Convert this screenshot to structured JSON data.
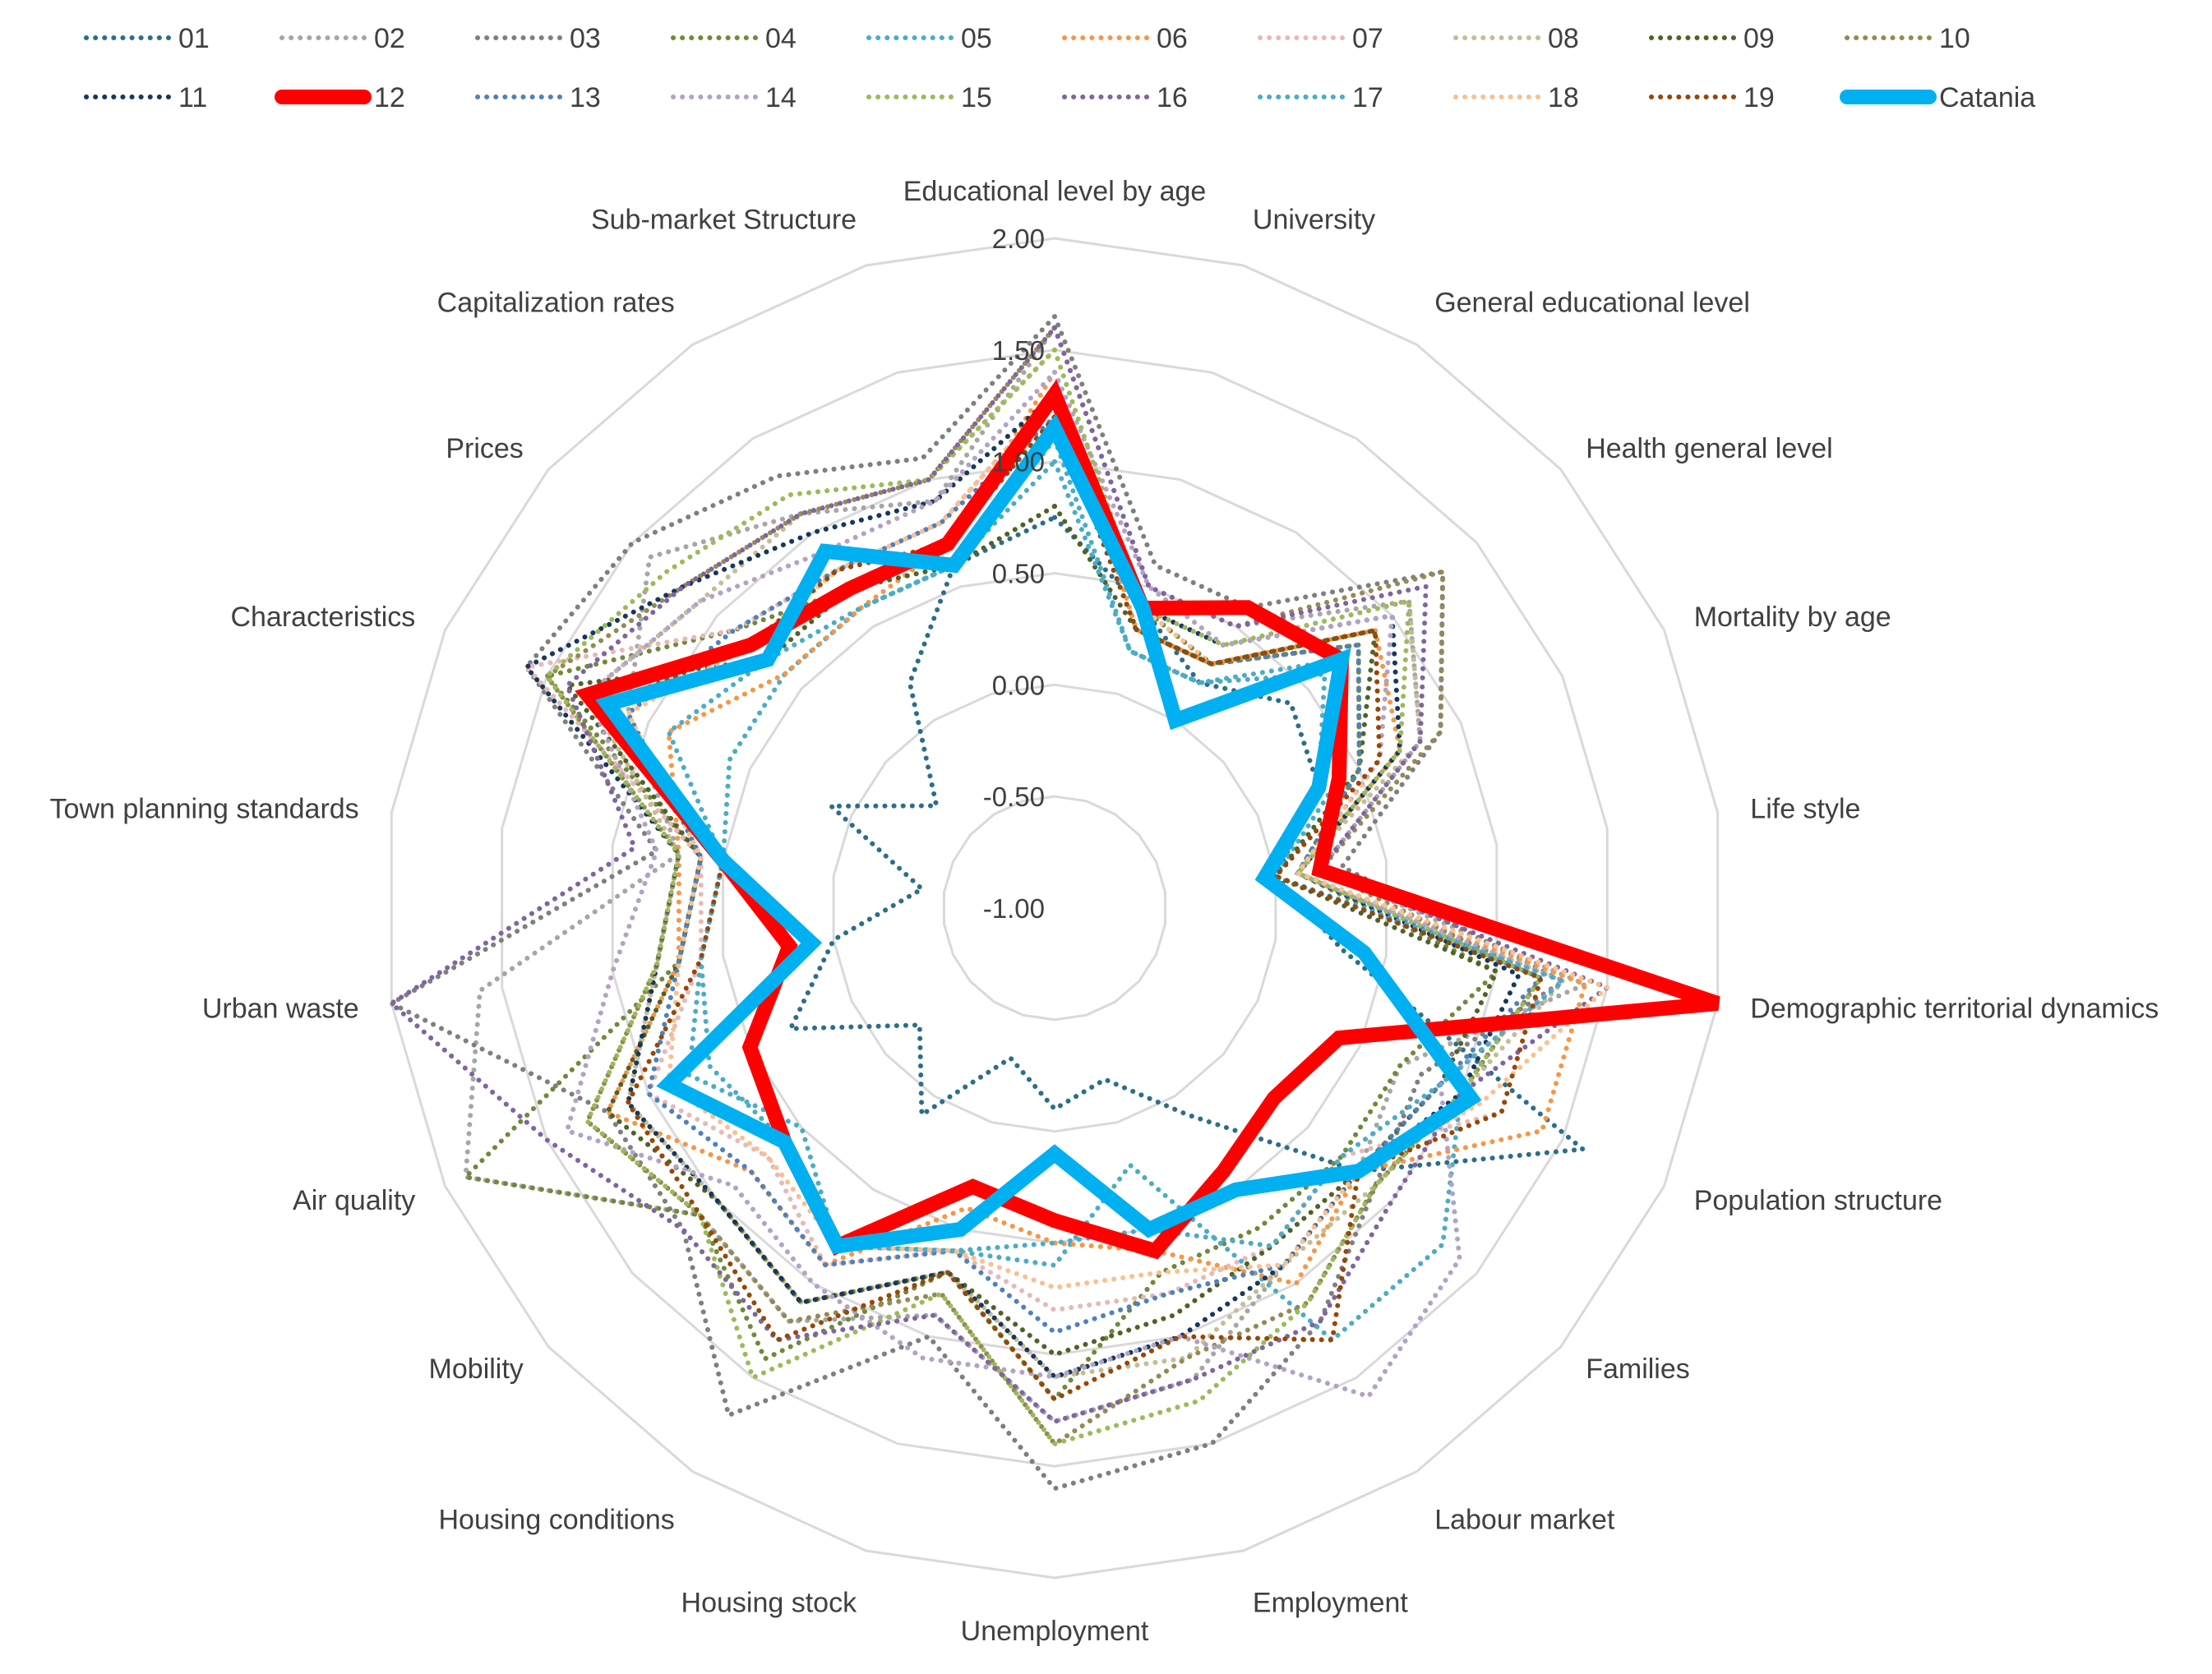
{
  "chart_data": {
    "type": "radar",
    "title": "",
    "rlim": [
      -1.0,
      2.0
    ],
    "r_ticks": [
      "-1.00",
      "-0.50",
      "0.00",
      "0.50",
      "1.00",
      "1.50",
      "2.00"
    ],
    "r_tick_values": [
      -1.0,
      -0.5,
      0.0,
      0.5,
      1.0,
      1.5,
      2.0
    ],
    "grid": true,
    "legend_position": "top",
    "categories": [
      "Educational level by age",
      "University",
      "General educational level",
      "Health general level",
      "Mortality by age",
      "Life style",
      "Demographic territorial dynamics",
      "Population structure",
      "Families",
      "Labour market",
      "Employment",
      "Unemployment",
      "Housing stock",
      "Housing conditions",
      "Mobility",
      "Air quality",
      "Urban waste",
      "Town planning standards",
      "Characteristics",
      "Prices",
      "Capitalization rates",
      "Sub-market Structure"
    ],
    "series": [
      {
        "name": "01",
        "color": "#2c6e8a",
        "style": "dotted",
        "values": [
          0.75,
          0.4,
          0.2,
          0.4,
          0.3,
          0.0,
          0.3,
          1.6,
          0.8,
          0.1,
          -0.2,
          -0.1,
          -0.3,
          0.1,
          -0.2,
          0.3,
          0.0,
          -0.4,
          0.1,
          -0.3,
          0.2,
          0.6
        ]
      },
      {
        "name": "02",
        "color": "#a6a6a6",
        "style": "dotted",
        "values": [
          1.6,
          0.5,
          0.5,
          1.1,
          0.8,
          0.2,
          1.4,
          0.7,
          0.8,
          0.9,
          1.2,
          1.3,
          0.9,
          1.2,
          1.1,
          1.9,
          1.6,
          0.7,
          1.1,
          1.4,
          1.1,
          0.9
        ]
      },
      {
        "name": "03",
        "color": "#7f7f7f",
        "style": "dotted",
        "values": [
          1.65,
          0.6,
          0.6,
          1.3,
          0.9,
          0.3,
          1.3,
          0.8,
          0.9,
          1.2,
          1.5,
          1.6,
          1.0,
          1.7,
          1.2,
          1.2,
          2.0,
          0.8,
          1.6,
          1.5,
          1.3,
          1.1
        ]
      },
      {
        "name": "04",
        "color": "#70893a",
        "style": "dotted",
        "values": [
          1.2,
          0.4,
          0.3,
          0.8,
          0.5,
          0.1,
          1.0,
          0.7,
          0.7,
          0.7,
          0.7,
          1.2,
          0.7,
          1.4,
          1.1,
          1.9,
          0.7,
          0.6,
          1.5,
          0.9,
          0.7,
          0.7
        ]
      },
      {
        "name": "05",
        "color": "#4bacc6",
        "style": "dotted",
        "values": [
          1.1,
          0.2,
          0.2,
          0.7,
          0.4,
          0.0,
          1.2,
          1.0,
          1.3,
          1.3,
          0.2,
          0.6,
          0.6,
          0.8,
          0.5,
          0.8,
          0.6,
          0.5,
          0.6,
          0.6,
          0.6,
          0.6
        ]
      },
      {
        "name": "06",
        "color": "#f79646",
        "style": "dotted",
        "values": [
          1.4,
          0.3,
          0.3,
          0.9,
          0.7,
          0.1,
          1.4,
          1.4,
          0.8,
          1.0,
          0.6,
          0.5,
          0.4,
          0.9,
          0.8,
          1.2,
          0.7,
          0.7,
          0.9,
          0.6,
          0.6,
          0.7
        ]
      },
      {
        "name": "07",
        "color": "#e6b9b8",
        "style": "dotted",
        "values": [
          1.3,
          0.4,
          0.3,
          0.9,
          0.6,
          0.0,
          1.2,
          1.2,
          0.7,
          0.8,
          0.8,
          0.8,
          0.6,
          0.9,
          0.7,
          1.0,
          0.6,
          0.6,
          1.6,
          0.9,
          0.8,
          0.8
        ]
      },
      {
        "name": "08",
        "color": "#c4bd97",
        "style": "dotted",
        "values": [
          1.5,
          0.4,
          0.4,
          1.1,
          0.8,
          0.1,
          1.3,
          1.0,
          0.9,
          0.9,
          1.1,
          1.1,
          0.7,
          1.1,
          1.0,
          1.1,
          0.8,
          0.7,
          1.3,
          1.1,
          1.1,
          1.0
        ]
      },
      {
        "name": "09",
        "color": "#4f6228",
        "style": "dotted",
        "values": [
          0.8,
          0.3,
          0.3,
          0.9,
          0.5,
          0.0,
          1.0,
          0.9,
          0.8,
          0.8,
          0.9,
          1.0,
          0.7,
          1.1,
          1.0,
          1.2,
          0.7,
          0.6,
          1.4,
          0.7,
          0.7,
          0.6
        ]
      },
      {
        "name": "10",
        "color": "#948a54",
        "style": "dotted",
        "values": [
          1.6,
          0.5,
          0.5,
          1.3,
          0.9,
          0.2,
          1.2,
          1.0,
          0.9,
          1.1,
          1.1,
          1.4,
          0.8,
          1.2,
          1.1,
          1.3,
          0.8,
          0.7,
          1.5,
          1.2,
          1.1,
          1.0
        ]
      },
      {
        "name": "11",
        "color": "#17375e",
        "style": "dotted",
        "values": [
          1.3,
          0.4,
          0.4,
          1.0,
          0.7,
          0.1,
          1.1,
          1.0,
          0.8,
          0.9,
          1.0,
          1.1,
          0.7,
          1.1,
          1.0,
          1.1,
          0.8,
          0.7,
          1.6,
          1.2,
          1.0,
          0.9
        ]
      },
      {
        "name": "12",
        "color": "#ff0000",
        "style": "solid",
        "values": [
          1.3,
          0.4,
          0.6,
          0.7,
          0.4,
          0.2,
          2.0,
          0.4,
          0.3,
          0.4,
          0.6,
          0.4,
          0.3,
          0.8,
          0.6,
          0.5,
          0.2,
          0.5,
          1.3,
          0.8,
          0.7,
          0.7
        ]
      },
      {
        "name": "13",
        "color": "#4f81bd",
        "style": "dotted",
        "values": [
          1.2,
          0.3,
          0.3,
          0.8,
          0.5,
          0.1,
          1.2,
          0.9,
          0.8,
          0.9,
          0.8,
          0.9,
          0.6,
          0.9,
          0.8,
          1.0,
          0.7,
          0.6,
          1.1,
          0.9,
          0.8,
          0.8
        ]
      },
      {
        "name": "14",
        "color": "#b3a2c7",
        "style": "dotted",
        "values": [
          1.4,
          0.5,
          0.4,
          1.0,
          0.6,
          0.1,
          1.3,
          0.9,
          1.4,
          1.6,
          1.0,
          1.1,
          1.1,
          1.0,
          0.9,
          1.4,
          1.0,
          0.8,
          1.3,
          1.1,
          0.9,
          0.9
        ]
      },
      {
        "name": "15",
        "color": "#9bbb59",
        "style": "dotted",
        "values": [
          1.5,
          0.4,
          0.4,
          1.1,
          0.7,
          0.1,
          1.2,
          1.0,
          0.9,
          1.1,
          1.3,
          1.4,
          0.8,
          1.5,
          1.1,
          1.3,
          0.8,
          0.7,
          1.5,
          1.3,
          1.2,
          1.0
        ]
      },
      {
        "name": "16",
        "color": "#8064a2",
        "style": "dotted",
        "values": [
          1.6,
          0.5,
          0.5,
          1.2,
          0.8,
          0.2,
          1.5,
          1.0,
          1.0,
          1.2,
          1.2,
          1.3,
          0.9,
          1.3,
          1.2,
          1.5,
          2.0,
          0.9,
          1.4,
          1.2,
          1.1,
          1.0
        ]
      },
      {
        "name": "17",
        "color": "#4bacc6",
        "style": "dotted",
        "values": [
          1.0,
          0.2,
          0.2,
          0.6,
          0.3,
          0.0,
          1.3,
          0.9,
          0.7,
          0.8,
          0.5,
          0.5,
          0.6,
          0.8,
          0.6,
          0.7,
          0.6,
          0.5,
          0.9,
          0.7,
          0.6,
          0.6
        ]
      },
      {
        "name": "18",
        "color": "#fac090",
        "style": "dotted",
        "values": [
          1.3,
          0.4,
          0.3,
          0.9,
          0.6,
          0.1,
          1.5,
          1.1,
          0.8,
          0.9,
          0.7,
          0.7,
          0.6,
          0.8,
          0.7,
          0.9,
          0.7,
          0.6,
          1.1,
          0.8,
          0.8,
          0.8
        ]
      },
      {
        "name": "19",
        "color": "#974706",
        "style": "dotted",
        "values": [
          1.2,
          0.3,
          0.3,
          0.9,
          0.6,
          0.0,
          1.2,
          1.2,
          0.8,
          1.3,
          1.0,
          1.2,
          0.7,
          1.3,
          1.1,
          1.1,
          0.6,
          0.5,
          1.2,
          0.8,
          0.8,
          0.7
        ]
      },
      {
        "name": "Catania",
        "color": "#00b0f0",
        "style": "solid",
        "values": [
          1.15,
          0.4,
          0.0,
          0.7,
          0.3,
          -0.05,
          0.4,
          1.05,
          0.8,
          0.5,
          0.5,
          0.1,
          0.5,
          0.8,
          0.6,
          0.9,
          0.1,
          0.5,
          1.2,
          0.7,
          0.9,
          0.6
        ]
      }
    ]
  }
}
